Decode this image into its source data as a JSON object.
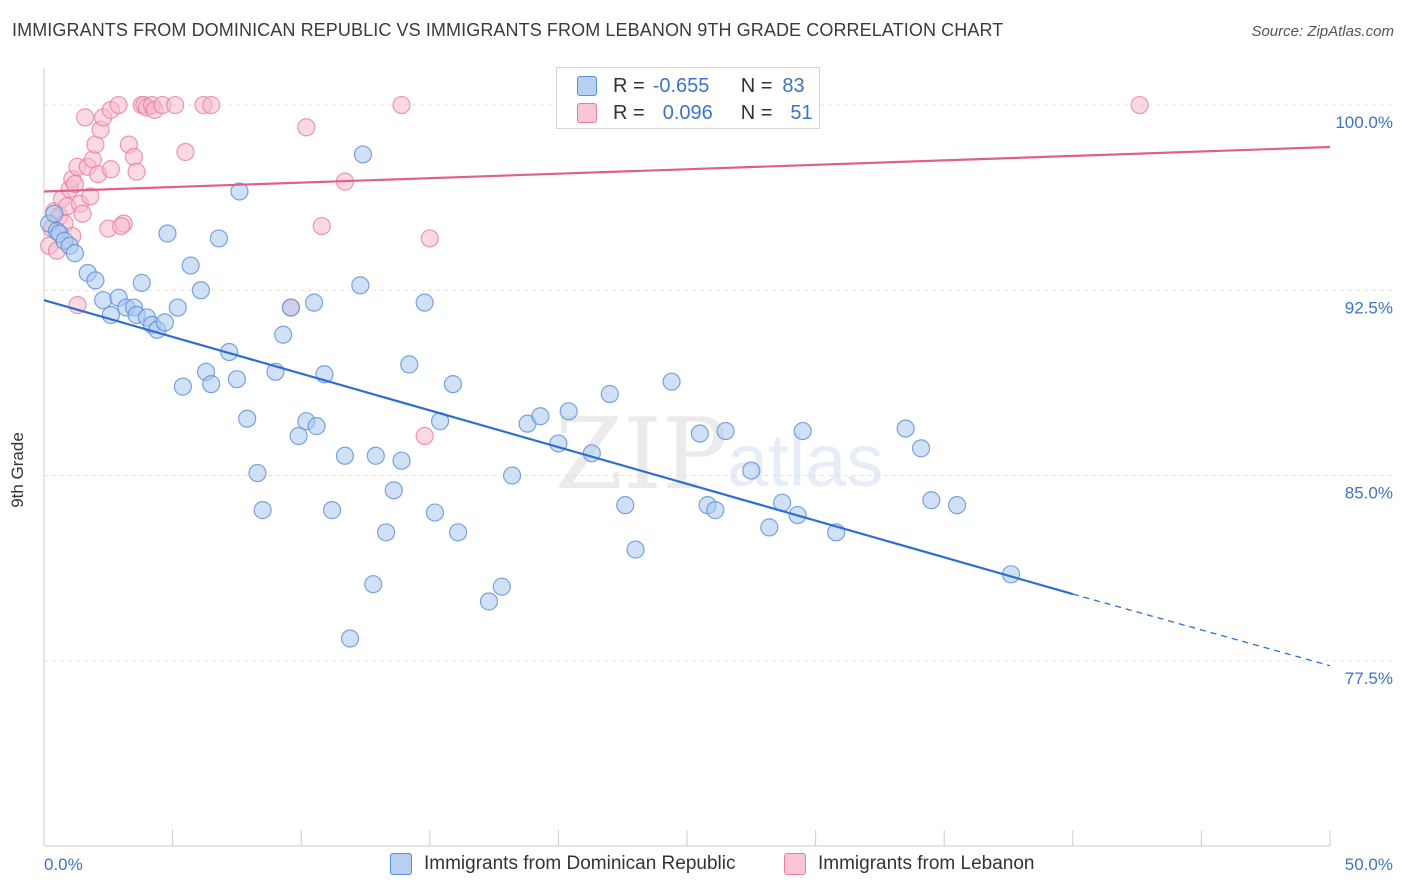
{
  "title": "IMMIGRANTS FROM DOMINICAN REPUBLIC VS IMMIGRANTS FROM LEBANON 9TH GRADE CORRELATION CHART",
  "source": "Source: ZipAtlas.com",
  "watermark": {
    "zip": "ZIP",
    "atlas": "atlas"
  },
  "legend_stats": [
    {
      "r_label": "R =",
      "r_value": "-0.655",
      "n_label": "N =",
      "n_value": "83"
    },
    {
      "r_label": "R =",
      "r_value": "0.096",
      "n_label": "N =",
      "n_value": "51"
    }
  ],
  "colors": {
    "blue_fill": "#aac8f0",
    "blue_stroke": "#5b8fd6",
    "blue_line": "#2f6fcc",
    "pink_fill": "#f7b9cc",
    "pink_stroke": "#e87ea0",
    "pink_line": "#e0608a",
    "tick_label": "#3b74c8",
    "grid": "#e3e3e3"
  },
  "chart_data": {
    "type": "scatter",
    "title": "IMMIGRANTS FROM DOMINICAN REPUBLIC VS IMMIGRANTS FROM LEBANON 9TH GRADE CORRELATION CHART",
    "xlabel": "",
    "ylabel": "9th Grade",
    "xlim": [
      0,
      50
    ],
    "ylim": [
      70.0,
      101.5
    ],
    "x_tick_labels": {
      "left": "0.0%",
      "right": "50.0%"
    },
    "y_ticks": [
      {
        "value": 100.0,
        "label": "100.0%"
      },
      {
        "value": 92.5,
        "label": "92.5%"
      },
      {
        "value": 85.0,
        "label": "85.0%"
      },
      {
        "value": 77.5,
        "label": "77.5%"
      }
    ],
    "grid": true,
    "legend_position": "bottom",
    "series": [
      {
        "name": "Immigrants from Dominican Republic",
        "color": "blue",
        "r": -0.655,
        "n": 83,
        "trend": {
          "x0": 0.0,
          "y0": 92.1,
          "x1": 40.0,
          "y1": 80.2,
          "dash_to_x": 50.0,
          "dash_to_y": 77.3
        },
        "points": [
          [
            0.2,
            95.2
          ],
          [
            0.4,
            95.6
          ],
          [
            0.5,
            94.9
          ],
          [
            0.6,
            94.8
          ],
          [
            0.8,
            94.5
          ],
          [
            1.0,
            94.3
          ],
          [
            1.2,
            94.0
          ],
          [
            1.7,
            93.2
          ],
          [
            2.0,
            92.9
          ],
          [
            2.3,
            92.1
          ],
          [
            2.6,
            91.5
          ],
          [
            2.9,
            92.2
          ],
          [
            3.2,
            91.8
          ],
          [
            3.5,
            91.8
          ],
          [
            3.6,
            91.5
          ],
          [
            3.8,
            92.8
          ],
          [
            4.0,
            91.4
          ],
          [
            4.2,
            91.1
          ],
          [
            4.4,
            90.9
          ],
          [
            4.7,
            91.2
          ],
          [
            4.8,
            94.8
          ],
          [
            5.2,
            91.8
          ],
          [
            5.4,
            88.6
          ],
          [
            5.7,
            93.5
          ],
          [
            6.1,
            92.5
          ],
          [
            6.3,
            89.2
          ],
          [
            6.5,
            88.7
          ],
          [
            6.8,
            94.6
          ],
          [
            7.2,
            90.0
          ],
          [
            7.5,
            88.9
          ],
          [
            7.6,
            96.5
          ],
          [
            7.9,
            87.3
          ],
          [
            8.3,
            85.1
          ],
          [
            8.5,
            83.6
          ],
          [
            9.0,
            89.2
          ],
          [
            9.3,
            90.7
          ],
          [
            9.6,
            91.8
          ],
          [
            9.9,
            86.6
          ],
          [
            10.2,
            87.2
          ],
          [
            10.5,
            92.0
          ],
          [
            10.6,
            87.0
          ],
          [
            10.9,
            89.1
          ],
          [
            11.2,
            83.6
          ],
          [
            11.7,
            85.8
          ],
          [
            11.9,
            78.4
          ],
          [
            12.3,
            92.7
          ],
          [
            12.4,
            98.0
          ],
          [
            12.8,
            80.6
          ],
          [
            12.9,
            85.8
          ],
          [
            13.3,
            82.7
          ],
          [
            13.6,
            84.4
          ],
          [
            13.9,
            85.6
          ],
          [
            14.2,
            89.5
          ],
          [
            14.8,
            92.0
          ],
          [
            15.2,
            83.5
          ],
          [
            15.4,
            87.2
          ],
          [
            15.9,
            88.7
          ],
          [
            16.1,
            82.7
          ],
          [
            17.3,
            79.9
          ],
          [
            17.8,
            80.5
          ],
          [
            18.2,
            85.0
          ],
          [
            18.8,
            87.1
          ],
          [
            19.3,
            87.4
          ],
          [
            20.0,
            86.3
          ],
          [
            20.4,
            87.6
          ],
          [
            21.3,
            85.9
          ],
          [
            22.0,
            88.3
          ],
          [
            22.6,
            83.8
          ],
          [
            23.0,
            82.0
          ],
          [
            24.4,
            88.8
          ],
          [
            25.5,
            86.7
          ],
          [
            25.8,
            83.8
          ],
          [
            26.1,
            83.6
          ],
          [
            26.5,
            86.8
          ],
          [
            27.5,
            85.2
          ],
          [
            28.2,
            82.9
          ],
          [
            28.7,
            83.9
          ],
          [
            29.3,
            83.4
          ],
          [
            29.5,
            86.8
          ],
          [
            30.8,
            82.7
          ],
          [
            33.5,
            86.9
          ],
          [
            34.1,
            86.1
          ],
          [
            34.5,
            84.0
          ],
          [
            35.5,
            83.8
          ],
          [
            37.6,
            81.0
          ]
        ]
      },
      {
        "name": "Immigrants from Lebanon",
        "color": "pink",
        "r": 0.096,
        "n": 51,
        "trend": {
          "x0": 0.0,
          "y0": 96.5,
          "x1": 50.0,
          "y1": 98.3
        },
        "points": [
          [
            0.2,
            94.3
          ],
          [
            0.3,
            95.0
          ],
          [
            0.4,
            95.7
          ],
          [
            0.5,
            94.1
          ],
          [
            0.6,
            95.5
          ],
          [
            0.7,
            96.2
          ],
          [
            0.8,
            95.2
          ],
          [
            0.9,
            95.9
          ],
          [
            1.0,
            96.6
          ],
          [
            1.1,
            94.7
          ],
          [
            1.1,
            97.0
          ],
          [
            1.2,
            96.8
          ],
          [
            1.3,
            97.5
          ],
          [
            1.4,
            96.0
          ],
          [
            1.5,
            95.6
          ],
          [
            1.7,
            97.5
          ],
          [
            1.8,
            96.3
          ],
          [
            1.6,
            99.5
          ],
          [
            1.9,
            97.8
          ],
          [
            2.0,
            98.4
          ],
          [
            2.1,
            97.2
          ],
          [
            2.2,
            99.0
          ],
          [
            2.3,
            99.5
          ],
          [
            2.5,
            95.0
          ],
          [
            2.6,
            97.4
          ],
          [
            2.6,
            99.8
          ],
          [
            2.9,
            100.0
          ],
          [
            3.1,
            95.2
          ],
          [
            3.0,
            95.1
          ],
          [
            3.3,
            98.4
          ],
          [
            3.5,
            97.9
          ],
          [
            3.6,
            97.3
          ],
          [
            3.8,
            100.0
          ],
          [
            3.9,
            100.0
          ],
          [
            4.0,
            99.9
          ],
          [
            4.2,
            100.0
          ],
          [
            4.3,
            99.8
          ],
          [
            4.6,
            100.0
          ],
          [
            5.1,
            100.0
          ],
          [
            5.5,
            98.1
          ],
          [
            6.2,
            100.0
          ],
          [
            6.5,
            100.0
          ],
          [
            9.6,
            91.8
          ],
          [
            10.2,
            99.1
          ],
          [
            10.8,
            95.1
          ],
          [
            11.7,
            96.9
          ],
          [
            13.9,
            100.0
          ],
          [
            14.8,
            86.6
          ],
          [
            15.0,
            94.6
          ],
          [
            42.6,
            100.0
          ],
          [
            1.3,
            91.9
          ]
        ]
      }
    ]
  }
}
